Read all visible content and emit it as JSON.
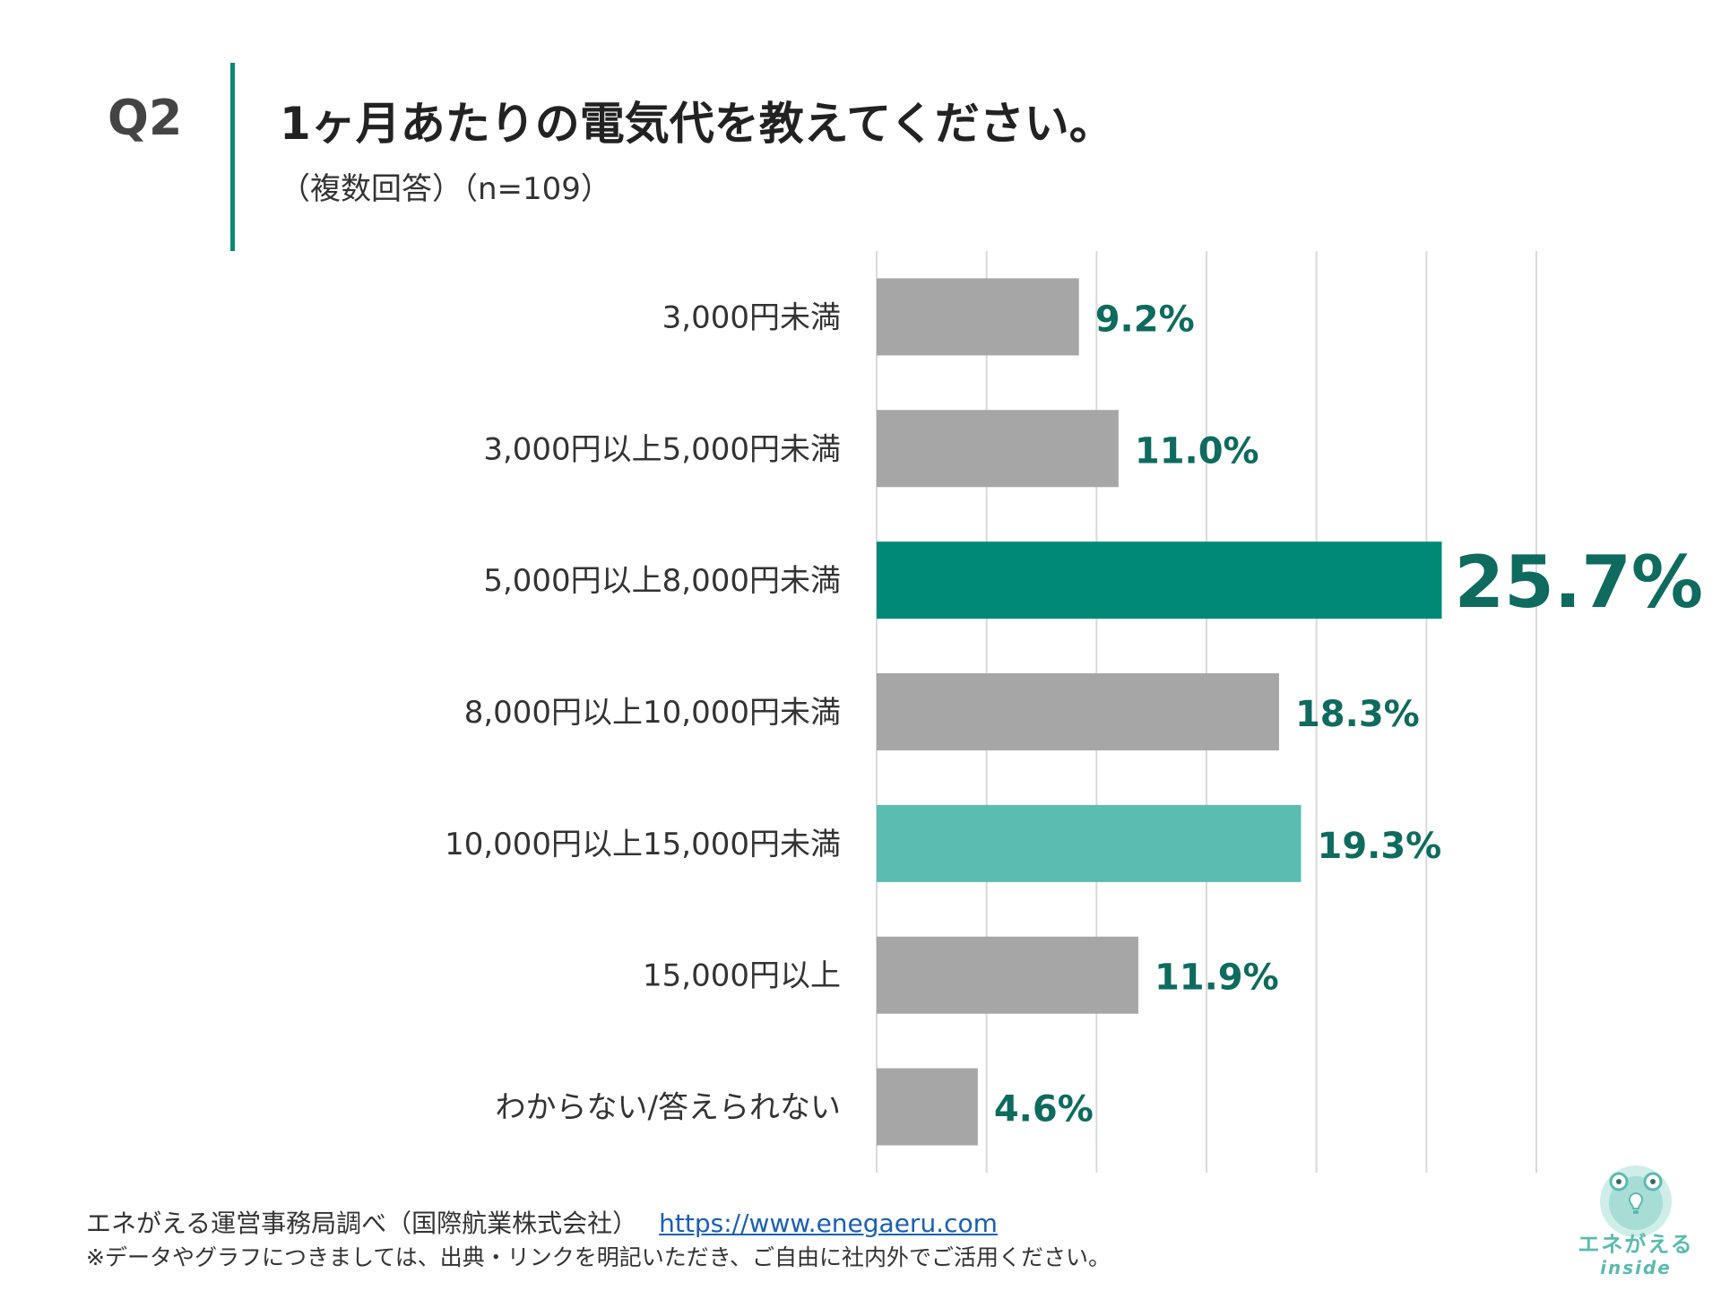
{
  "header": {
    "q_label": "Q2",
    "title": "1ヶ月あたりの電気代を教えてください。",
    "subtitle": "（複数回答）（n=109）"
  },
  "colors": {
    "bar_default": "#a6a6a6",
    "bar_highlight": "#008a76",
    "bar_secondary": "#5bbcb2",
    "label_text": "#0e6b5e",
    "grid": "#d9d9d9"
  },
  "chart_data": {
    "type": "bar",
    "orientation": "horizontal",
    "categories": [
      "3,000円未満",
      "3,000円以上5,000円未満",
      "5,000円以上8,000円未満",
      "8,000円以上10,000円未満",
      "10,000円以上15,000円未満",
      "15,000円以上",
      "わからない/答えられない"
    ],
    "values": [
      9.2,
      11.0,
      25.7,
      18.3,
      19.3,
      11.9,
      4.6
    ],
    "value_labels": [
      "9.2%",
      "11.0%",
      "25.7%",
      "18.3%",
      "19.3%",
      "11.9%",
      "4.6%"
    ],
    "bar_styles": [
      "default",
      "default",
      "highlight",
      "default",
      "secondary",
      "default",
      "default"
    ],
    "xlim": [
      0,
      30
    ],
    "grid": true
  },
  "footer": {
    "source": "エネがえる運営事務局調べ（国際航業株式会社）",
    "link": "https://www.enegaeru.com",
    "notice": "※データやグラフにつきましては、出典・リンクを明記いただき、ご自由に社内外でご活用ください。"
  },
  "logo": {
    "name": "エネがえる",
    "sub": "inside"
  }
}
